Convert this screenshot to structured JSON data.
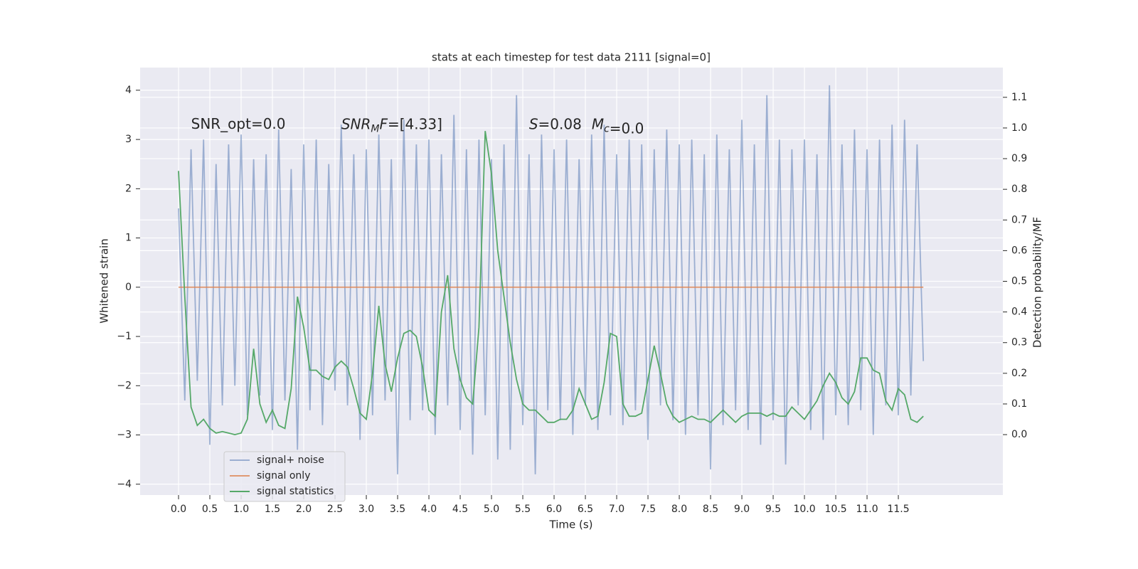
{
  "chart_data": {
    "type": "line",
    "title": "stats at each timestep for test data 2111 [signal=0]",
    "x_label": "Time (s)",
    "y_label": "Whitened strain",
    "y2_label": "Detection probability/MF",
    "annotations": [
      {
        "text": "SNR_opt=0.0",
        "math": false,
        "x": 0.2,
        "y": 3.3
      },
      {
        "text": "SNR_MF=[4.33]",
        "math": true,
        "x": 2.6,
        "y": 3.3
      },
      {
        "text": "S=0.08",
        "math": true,
        "x": 5.6,
        "y": 3.3
      },
      {
        "text": "M_c=0.0",
        "math": true,
        "x": 6.6,
        "y": 3.3
      }
    ],
    "x": [
      0.0,
      0.1,
      0.2,
      0.3,
      0.4,
      0.5,
      0.6,
      0.7,
      0.8,
      0.9,
      1.0,
      1.1,
      1.2,
      1.3,
      1.4,
      1.5,
      1.6,
      1.7,
      1.8,
      1.9,
      2.0,
      2.1,
      2.2,
      2.3,
      2.4,
      2.5,
      2.6,
      2.7,
      2.8,
      2.9,
      3.0,
      3.1,
      3.2,
      3.3,
      3.4,
      3.5,
      3.6,
      3.7,
      3.8,
      3.9,
      4.0,
      4.1,
      4.2,
      4.3,
      4.4,
      4.5,
      4.6,
      4.7,
      4.8,
      4.9,
      5.0,
      5.1,
      5.2,
      5.3,
      5.4,
      5.5,
      5.6,
      5.7,
      5.8,
      5.9,
      6.0,
      6.1,
      6.2,
      6.3,
      6.4,
      6.5,
      6.6,
      6.7,
      6.8,
      6.9,
      7.0,
      7.1,
      7.2,
      7.3,
      7.4,
      7.5,
      7.6,
      7.7,
      7.8,
      7.9,
      8.0,
      8.1,
      8.2,
      8.3,
      8.4,
      8.5,
      8.6,
      8.7,
      8.8,
      8.9,
      9.0,
      9.1,
      9.2,
      9.3,
      9.4,
      9.5,
      9.6,
      9.7,
      9.8,
      9.9,
      10.0,
      10.1,
      10.2,
      10.3,
      10.4,
      10.5,
      10.6,
      10.7,
      10.8,
      10.9,
      11.0,
      11.1,
      11.2,
      11.3,
      11.4,
      11.5,
      11.6,
      11.7,
      11.8,
      11.9
    ],
    "series": [
      {
        "name": "signal+ noise",
        "color": "#4c72b0",
        "opacity": 0.5,
        "axis": "y",
        "values": [
          1.6,
          -2.3,
          2.8,
          -1.9,
          3.0,
          -3.2,
          2.5,
          -2.4,
          2.9,
          -2.0,
          3.1,
          -2.6,
          2.6,
          -2.2,
          2.7,
          -2.9,
          3.2,
          -2.3,
          2.4,
          -3.3,
          2.9,
          -2.5,
          3.0,
          -2.8,
          2.5,
          -2.1,
          3.3,
          -2.4,
          2.7,
          -3.1,
          2.8,
          -2.6,
          3.1,
          -2.3,
          2.6,
          -3.8,
          3.4,
          -2.7,
          2.9,
          -2.5,
          3.0,
          -3.0,
          2.7,
          -2.4,
          3.5,
          -2.9,
          2.8,
          -3.4,
          3.0,
          -2.6,
          2.6,
          -3.5,
          2.9,
          -3.3,
          3.9,
          -2.8,
          2.7,
          -3.8,
          3.1,
          -2.5,
          2.8,
          -2.7,
          3.0,
          -3.0,
          2.6,
          -2.4,
          3.1,
          -2.9,
          3.3,
          -2.6,
          2.7,
          -2.8,
          3.0,
          -2.5,
          2.9,
          -3.1,
          2.8,
          -2.4,
          3.2,
          -2.7,
          2.9,
          -3.0,
          3.0,
          -2.6,
          2.7,
          -3.7,
          3.1,
          -2.8,
          2.8,
          -2.5,
          3.4,
          -2.9,
          2.9,
          -3.2,
          3.9,
          -2.7,
          3.0,
          -3.6,
          2.8,
          -2.4,
          3.0,
          -2.9,
          2.7,
          -3.1,
          4.1,
          -2.6,
          2.9,
          -2.8,
          3.2,
          -2.5,
          2.8,
          -3.0,
          3.0,
          -2.4,
          3.3,
          -2.6,
          3.4,
          -2.2,
          2.9,
          -1.5
        ]
      },
      {
        "name": "signal only",
        "color": "#dd8452",
        "opacity": 0.8,
        "axis": "y",
        "values": [
          0,
          0,
          0,
          0,
          0,
          0,
          0,
          0,
          0,
          0,
          0,
          0,
          0,
          0,
          0,
          0,
          0,
          0,
          0,
          0,
          0,
          0,
          0,
          0,
          0,
          0,
          0,
          0,
          0,
          0,
          0,
          0,
          0,
          0,
          0,
          0,
          0,
          0,
          0,
          0,
          0,
          0,
          0,
          0,
          0,
          0,
          0,
          0,
          0,
          0,
          0,
          0,
          0,
          0,
          0,
          0,
          0,
          0,
          0,
          0,
          0,
          0,
          0,
          0,
          0,
          0,
          0,
          0,
          0,
          0,
          0,
          0,
          0,
          0,
          0,
          0,
          0,
          0,
          0,
          0,
          0,
          0,
          0,
          0,
          0,
          0,
          0,
          0,
          0,
          0,
          0,
          0,
          0,
          0,
          0,
          0,
          0,
          0,
          0,
          0,
          0,
          0,
          0,
          0,
          0,
          0,
          0,
          0,
          0,
          0,
          0,
          0,
          0,
          0,
          0,
          0,
          0,
          0,
          0,
          0
        ]
      },
      {
        "name": "signal statistics",
        "color": "#55a868",
        "opacity": 1,
        "axis": "y2",
        "values": [
          0.86,
          0.45,
          0.09,
          0.03,
          0.05,
          0.02,
          0.005,
          0.01,
          0.005,
          0.0,
          0.005,
          0.05,
          0.28,
          0.1,
          0.04,
          0.08,
          0.03,
          0.02,
          0.15,
          0.45,
          0.35,
          0.21,
          0.21,
          0.19,
          0.18,
          0.22,
          0.24,
          0.22,
          0.15,
          0.07,
          0.05,
          0.2,
          0.42,
          0.23,
          0.14,
          0.25,
          0.33,
          0.34,
          0.32,
          0.22,
          0.08,
          0.06,
          0.4,
          0.52,
          0.28,
          0.18,
          0.12,
          0.1,
          0.35,
          0.99,
          0.85,
          0.6,
          0.45,
          0.3,
          0.18,
          0.1,
          0.08,
          0.08,
          0.06,
          0.04,
          0.04,
          0.05,
          0.05,
          0.08,
          0.15,
          0.1,
          0.05,
          0.06,
          0.17,
          0.33,
          0.32,
          0.1,
          0.06,
          0.06,
          0.07,
          0.18,
          0.29,
          0.2,
          0.1,
          0.06,
          0.04,
          0.05,
          0.06,
          0.05,
          0.05,
          0.04,
          0.06,
          0.08,
          0.06,
          0.04,
          0.06,
          0.07,
          0.07,
          0.07,
          0.06,
          0.07,
          0.06,
          0.06,
          0.09,
          0.07,
          0.05,
          0.08,
          0.11,
          0.16,
          0.2,
          0.17,
          0.12,
          0.1,
          0.14,
          0.25,
          0.25,
          0.21,
          0.2,
          0.11,
          0.08,
          0.15,
          0.13,
          0.05,
          0.04,
          0.06
        ]
      }
    ],
    "xlim": [
      -0.614,
      13.17
    ],
    "ylim": [
      -4.22,
      4.46
    ],
    "y2lim": [
      -0.197,
      1.197
    ],
    "xticks": [
      {
        "value": 0,
        "label": "0.0"
      },
      {
        "value": 0.5,
        "label": "0.5"
      },
      {
        "value": 1,
        "label": "1.0"
      },
      {
        "value": 1.5,
        "label": "1.5"
      },
      {
        "value": 2,
        "label": "2.0"
      },
      {
        "value": 2.5,
        "label": "2.5"
      },
      {
        "value": 3,
        "label": "3.0"
      },
      {
        "value": 3.5,
        "label": "3.5"
      },
      {
        "value": 4,
        "label": "4.0"
      },
      {
        "value": 4.5,
        "label": "4.5"
      },
      {
        "value": 5,
        "label": "5.0"
      },
      {
        "value": 5.5,
        "label": "5.5"
      },
      {
        "value": 6,
        "label": "6.0"
      },
      {
        "value": 6.5,
        "label": "6.5"
      },
      {
        "value": 7,
        "label": "7.0"
      },
      {
        "value": 7.5,
        "label": "7.5"
      },
      {
        "value": 8,
        "label": "8.0"
      },
      {
        "value": 8.5,
        "label": "8.5"
      },
      {
        "value": 9,
        "label": "9.0"
      },
      {
        "value": 9.5,
        "label": "9.5"
      },
      {
        "value": 10,
        "label": "10.0"
      },
      {
        "value": 10.5,
        "label": "10.5"
      },
      {
        "value": 11,
        "label": "11.0"
      },
      {
        "value": 11.5,
        "label": "11.5"
      }
    ],
    "yticks": [
      {
        "value": -4,
        "label": "−4"
      },
      {
        "value": -3,
        "label": "−3"
      },
      {
        "value": -2,
        "label": "−2"
      },
      {
        "value": -1,
        "label": "−1"
      },
      0,
      1,
      2,
      3,
      4
    ],
    "y2ticks": [
      {
        "value": 0,
        "label": "0.0"
      },
      {
        "value": 0.1,
        "label": "0.1"
      },
      {
        "value": 0.2,
        "label": "0.2"
      },
      {
        "value": 0.3,
        "label": "0.3"
      },
      {
        "value": 0.4,
        "label": "0.4"
      },
      {
        "value": 0.5,
        "label": "0.5"
      },
      {
        "value": 0.6,
        "label": "0.6"
      },
      {
        "value": 0.7,
        "label": "0.7"
      },
      {
        "value": 0.8,
        "label": "0.8"
      },
      {
        "value": 0.9,
        "label": "0.9"
      },
      {
        "value": 1.0,
        "label": "1.0"
      },
      {
        "value": 1.1,
        "label": "1.1"
      }
    ],
    "grid": true,
    "legend": "lower left",
    "background": "#eaeaf2"
  }
}
